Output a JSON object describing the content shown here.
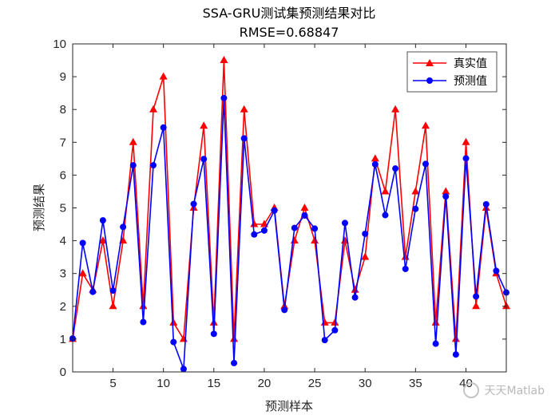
{
  "chart_data": {
    "type": "line",
    "title": "SSA-GRU测试集预测结果对比",
    "subtitle": "RMSE=0.68847",
    "xlabel": "预测样本",
    "ylabel": "预测结果",
    "xlim": [
      1,
      44
    ],
    "ylim": [
      0,
      10
    ],
    "xticks": [
      5,
      10,
      15,
      20,
      25,
      30,
      35,
      40
    ],
    "yticks": [
      0,
      1,
      2,
      3,
      4,
      5,
      6,
      7,
      8,
      9,
      10
    ],
    "grid": false,
    "legend_position": "top-right",
    "x": [
      1,
      2,
      3,
      4,
      5,
      6,
      7,
      8,
      9,
      10,
      11,
      12,
      13,
      14,
      15,
      16,
      17,
      18,
      19,
      20,
      21,
      22,
      23,
      24,
      25,
      26,
      27,
      28,
      29,
      30,
      31,
      32,
      33,
      34,
      35,
      36,
      37,
      38,
      39,
      40,
      41,
      42,
      43,
      44
    ],
    "series": [
      {
        "name": "真实值",
        "color": "#ff0000",
        "marker": "triangle",
        "values": [
          1.0,
          3.0,
          2.5,
          4.0,
          2.0,
          4.0,
          7.0,
          2.0,
          8.0,
          9.0,
          1.5,
          1.0,
          5.0,
          7.5,
          1.5,
          9.5,
          1.0,
          8.0,
          4.5,
          4.5,
          5.0,
          2.0,
          4.0,
          5.0,
          4.0,
          1.5,
          1.5,
          4.0,
          2.5,
          3.5,
          6.5,
          5.5,
          8.0,
          3.5,
          5.5,
          7.5,
          1.5,
          5.5,
          1.0,
          7.0,
          2.0,
          5.0,
          3.0,
          2.0
        ]
      },
      {
        "name": "预测值",
        "color": "#0000ff",
        "marker": "circle",
        "values": [
          1.02,
          3.93,
          2.44,
          4.62,
          2.48,
          4.42,
          6.3,
          1.52,
          6.3,
          7.45,
          0.91,
          0.09,
          5.12,
          6.49,
          1.16,
          8.35,
          0.27,
          7.12,
          4.19,
          4.31,
          4.92,
          1.89,
          4.39,
          4.77,
          4.37,
          0.97,
          1.27,
          4.54,
          2.27,
          4.21,
          6.33,
          4.78,
          6.2,
          3.14,
          4.97,
          6.34,
          0.86,
          5.35,
          0.53,
          6.51,
          2.3,
          5.11,
          3.08,
          2.42
        ]
      }
    ]
  },
  "watermark": {
    "text": "天天Matlab",
    "icon": "wechat-logo-icon"
  }
}
